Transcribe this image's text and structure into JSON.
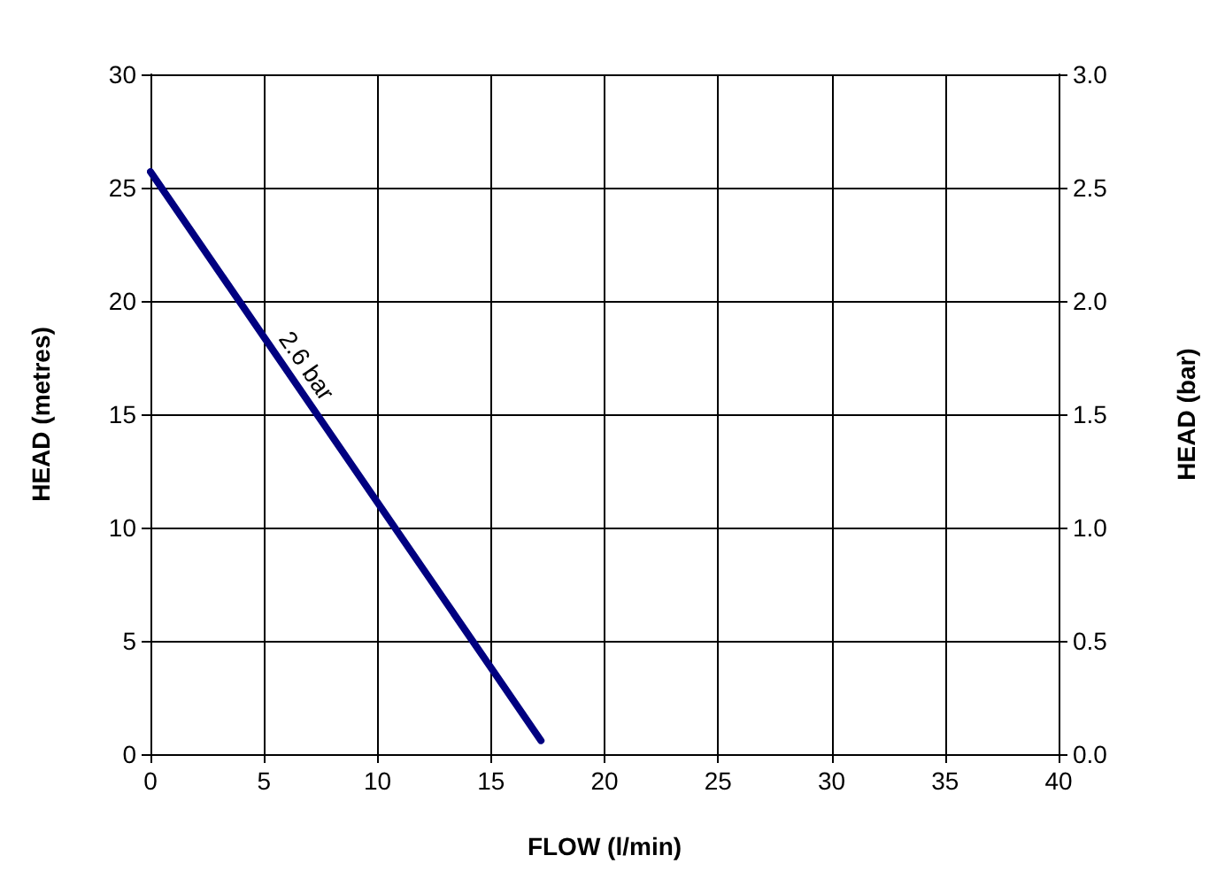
{
  "chart_data": {
    "type": "line",
    "xlabel": "FLOW (l/min)",
    "ylabel": "HEAD (metres)",
    "y2label": "HEAD (bar)",
    "series": [
      {
        "name": "2.6 bar",
        "color": "#000080",
        "x": [
          0,
          17.2
        ],
        "values": [
          25.7,
          0.6
        ]
      }
    ],
    "xlim": [
      0,
      40
    ],
    "xticks": [
      0,
      5,
      10,
      15,
      20,
      25,
      30,
      35,
      40
    ],
    "ylim": [
      0,
      30
    ],
    "yticks": [
      0,
      5,
      10,
      15,
      20,
      25,
      30
    ],
    "y2lim": [
      0,
      3
    ],
    "y2ticks": [
      {
        "value": 0,
        "label": "0.0"
      },
      {
        "value": 0.5,
        "label": "0.5"
      },
      {
        "value": 1,
        "label": "1.0"
      },
      {
        "value": 1.5,
        "label": "1.5"
      },
      {
        "value": 2,
        "label": "2.0"
      },
      {
        "value": 2.5,
        "label": "2.5"
      },
      {
        "value": 3,
        "label": "3.0"
      }
    ],
    "grid": true,
    "marker": "none",
    "line_style": "solid",
    "legend": false
  }
}
